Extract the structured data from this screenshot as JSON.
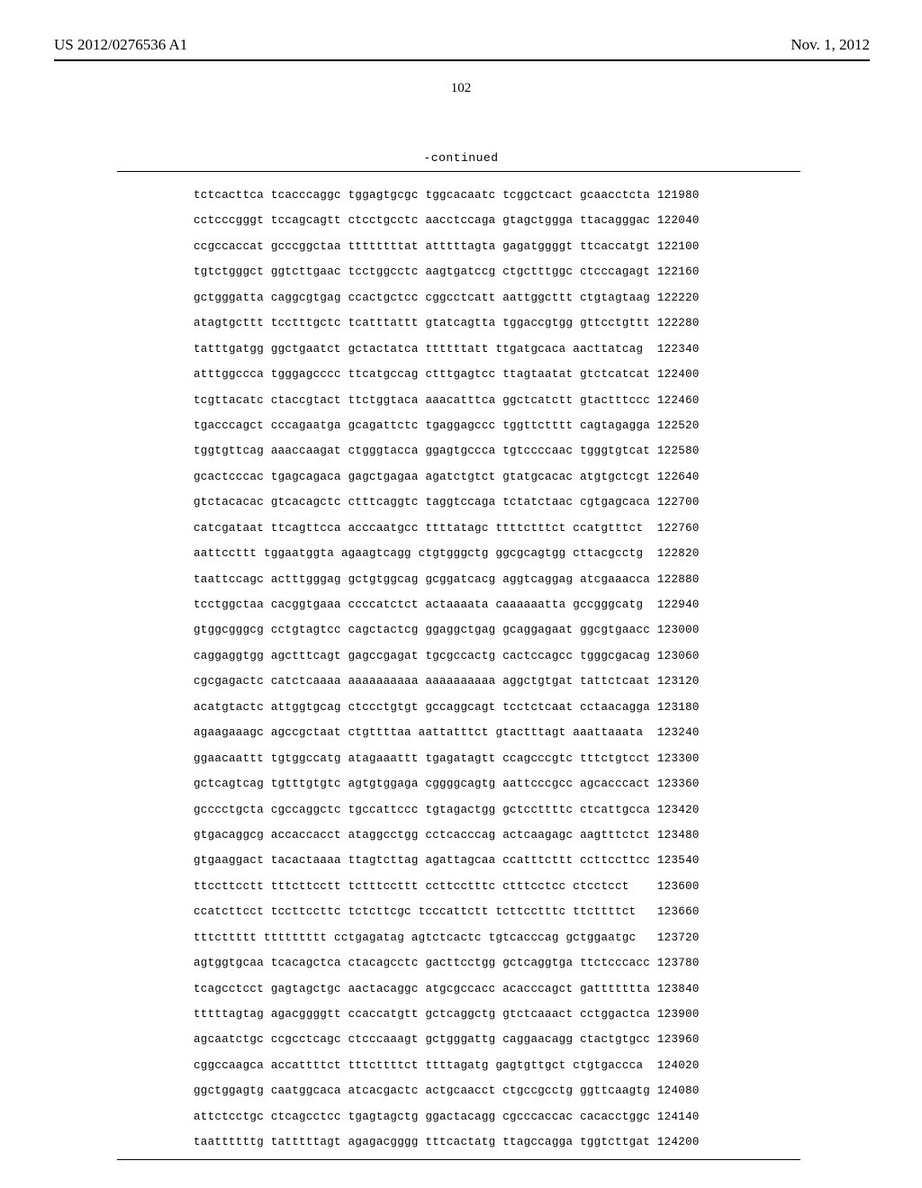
{
  "header": {
    "patent_id": "US 2012/0276536 A1",
    "pub_date": "Nov. 1, 2012"
  },
  "page_number": "102",
  "continued_label": "-continued",
  "sequence": {
    "rows": [
      {
        "groups": [
          "tctcacttca",
          "tcacccaggc",
          "tggagtgcgc",
          "tggcacaatc",
          "tcggctcact",
          "gcaacctcta"
        ],
        "pos": "121980"
      },
      {
        "groups": [
          "cctcccgggt",
          "tccagcagtt",
          "ctcctgcctc",
          "aacctccaga",
          "gtagctggga",
          "ttacagggac"
        ],
        "pos": "122040"
      },
      {
        "groups": [
          "ccgccaccat",
          "gcccggctaa",
          "ttttttttat",
          "atttttagta",
          "gagatggggt",
          "ttcaccatgt"
        ],
        "pos": "122100"
      },
      {
        "groups": [
          "tgtctgggct",
          "ggtcttgaac",
          "tcctggcctc",
          "aagtgatccg",
          "ctgctttggc",
          "ctcccagagt"
        ],
        "pos": "122160"
      },
      {
        "groups": [
          "gctgggatta",
          "caggcgtgag",
          "ccactgctcc",
          "cggcctcatt",
          "aattggcttt",
          "ctgtagtaag"
        ],
        "pos": "122220"
      },
      {
        "groups": [
          "atagtgcttt",
          "tcctttgctc",
          "tcatttattt",
          "gtatcagtta",
          "tggaccgtgg",
          "gttcctgttt"
        ],
        "pos": "122280"
      },
      {
        "groups": [
          "tatttgatgg",
          "ggctgaatct",
          "gctactatca",
          "ttttttatt",
          "ttgatgcaca",
          "aacttatcag"
        ],
        "pos": "122340"
      },
      {
        "groups": [
          "atttggccca",
          "tgggagcccc",
          "ttcatgccag",
          "ctttgagtcc",
          "ttagtaatat",
          "gtctcatcat"
        ],
        "pos": "122400"
      },
      {
        "groups": [
          "tcgttacatc",
          "ctaccgtact",
          "ttctggtaca",
          "aaacatttca",
          "ggctcatctt",
          "gtactttccc"
        ],
        "pos": "122460"
      },
      {
        "groups": [
          "tgacccagct",
          "cccagaatga",
          "gcagattctc",
          "tgaggagccc",
          "tggttctttt",
          "cagtagagga"
        ],
        "pos": "122520"
      },
      {
        "groups": [
          "tggtgttcag",
          "aaaccaagat",
          "ctgggtacca",
          "ggagtgccca",
          "tgtccccaac",
          "tgggtgtcat"
        ],
        "pos": "122580"
      },
      {
        "groups": [
          "gcactcccac",
          "tgagcagaca",
          "gagctgagaa",
          "agatctgtct",
          "gtatgcacac",
          "atgtgctcgt"
        ],
        "pos": "122640"
      },
      {
        "groups": [
          "gtctacacac",
          "gtcacagctc",
          "ctttcaggtc",
          "taggtccaga",
          "tctatctaac",
          "cgtgagcaca"
        ],
        "pos": "122700"
      },
      {
        "groups": [
          "catcgataat",
          "ttcagttcca",
          "acccaatgcc",
          "ttttatagc",
          "ttttctttct",
          "ccatgtttct"
        ],
        "pos": "122760"
      },
      {
        "groups": [
          "aattccttt",
          "tggaatggta",
          "agaagtcagg",
          "ctgtgggctg",
          "ggcgcagtgg",
          "cttacgcctg"
        ],
        "pos": "122820"
      },
      {
        "groups": [
          "taattccagc",
          "actttgggag",
          "gctgtggcag",
          "gcggatcacg",
          "aggtcaggag",
          "atcgaaacca"
        ],
        "pos": "122880"
      },
      {
        "groups": [
          "tcctggctaa",
          "cacggtgaaa",
          "ccccatctct",
          "actaaaata",
          "caaaaaatta",
          "gccgggcatg"
        ],
        "pos": "122940"
      },
      {
        "groups": [
          "gtggcgggcg",
          "cctgtagtcc",
          "cagctactcg",
          "ggaggctgag",
          "gcaggagaat",
          "ggcgtgaacc"
        ],
        "pos": "123000"
      },
      {
        "groups": [
          "caggaggtgg",
          "agctttcagt",
          "gagccgagat",
          "tgcgccactg",
          "cactccagcc",
          "tgggcgacag"
        ],
        "pos": "123060"
      },
      {
        "groups": [
          "cgcgagactc",
          "catctcaaaa",
          "aaaaaaaaaa",
          "aaaaaaaaaa",
          "aggctgtgat",
          "tattctcaat"
        ],
        "pos": "123120"
      },
      {
        "groups": [
          "acatgtactc",
          "attggtgcag",
          "ctccctgtgt",
          "gccaggcagt",
          "tcctctcaat",
          "cctaacagga"
        ],
        "pos": "123180"
      },
      {
        "groups": [
          "agaagaaagc",
          "agccgctaat",
          "ctgttttaa",
          "aattatttct",
          "gtactttagt",
          "aaattaaata"
        ],
        "pos": "123240"
      },
      {
        "groups": [
          "ggaacaattt",
          "tgtggccatg",
          "atagaaattt",
          "tgagatagtt",
          "ccagcccgtc",
          "tttctgtcct"
        ],
        "pos": "123300"
      },
      {
        "groups": [
          "gctcagtcag",
          "tgtttgtgtc",
          "agtgtggaga",
          "cggggcagtg",
          "aattcccgcc",
          "agcacccact"
        ],
        "pos": "123360"
      },
      {
        "groups": [
          "gcccctgcta",
          "cgccaggctc",
          "tgccattccc",
          "tgtagactgg",
          "gctccttttc",
          "ctcattgcca"
        ],
        "pos": "123420"
      },
      {
        "groups": [
          "gtgacaggcg",
          "accaccacct",
          "ataggcctgg",
          "cctcacccag",
          "actcaagagc",
          "aagtttctct"
        ],
        "pos": "123480"
      },
      {
        "groups": [
          "gtgaaggact",
          "tacactaaaa",
          "ttagtcttag",
          "agattagcaa",
          "ccatttcttt",
          "ccttccttcc"
        ],
        "pos": "123540"
      },
      {
        "groups": [
          "ttccttcctt",
          "tttcttcctt",
          "tctttccttt",
          "ccttcctttc",
          "ctttcctcc",
          "ctcctcct"
        ],
        "pos": "123600"
      },
      {
        "groups": [
          "ccatcttcct",
          "tccttccttc",
          "tctcttcgc",
          "tcccattctt",
          "tcttcctttc",
          "ttcttttct"
        ],
        "pos": "123660"
      },
      {
        "groups": [
          "tttcttttt",
          "ttttttttt",
          "cctgagatag",
          "agtctcactc",
          "tgtcacccag",
          "gctggaatgc"
        ],
        "pos": "123720"
      },
      {
        "groups": [
          "agtggtgcaa",
          "tcacagctca",
          "ctacagcctc",
          "gacttcctgg",
          "gctcaggtga",
          "ttctcccacc"
        ],
        "pos": "123780"
      },
      {
        "groups": [
          "tcagcctcct",
          "gagtagctgc",
          "aactacaggc",
          "atgcgccacc",
          "acacccagct",
          "gattttttta"
        ],
        "pos": "123840"
      },
      {
        "groups": [
          "tttttagtag",
          "agacggggtt",
          "ccaccatgtt",
          "gctcaggctg",
          "gtctcaaact",
          "cctggactca"
        ],
        "pos": "123900"
      },
      {
        "groups": [
          "agcaatctgc",
          "ccgcctcagc",
          "ctcccaaagt",
          "gctgggattg",
          "caggaacagg",
          "ctactgtgcc"
        ],
        "pos": "123960"
      },
      {
        "groups": [
          "cggccaagca",
          "accattttct",
          "tttcttttct",
          "ttttagatg",
          "gagtgttgct",
          "ctgtgaccca"
        ],
        "pos": "124020"
      },
      {
        "groups": [
          "ggctggagtg",
          "caatggcaca",
          "atcacgactc",
          "actgcaacct",
          "ctgccgcctg",
          "ggttcaagtg"
        ],
        "pos": "124080"
      },
      {
        "groups": [
          "attctcctgc",
          "ctcagcctcc",
          "tgagtagctg",
          "ggactacagg",
          "cgcccaccac",
          "cacacctggc"
        ],
        "pos": "124140"
      },
      {
        "groups": [
          "taattttttg",
          "tatttttagt",
          "agagacgggg",
          "tttcactatg",
          "ttagccagga",
          "tggtcttgat"
        ],
        "pos": "124200"
      }
    ]
  }
}
